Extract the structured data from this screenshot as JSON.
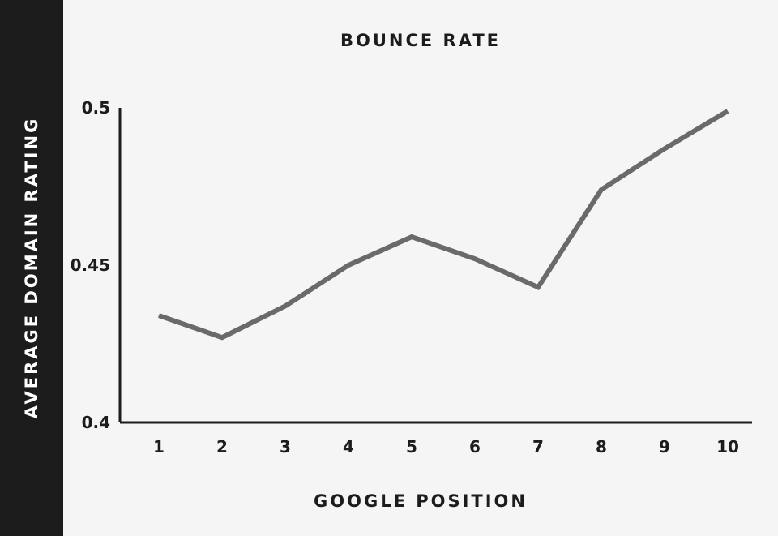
{
  "chart_data": {
    "type": "line",
    "title": "BOUNCE RATE",
    "xlabel": "GOOGLE POSITION",
    "ylabel": "AVERAGE DOMAIN RATING",
    "categories": [
      "1",
      "2",
      "3",
      "4",
      "5",
      "6",
      "7",
      "8",
      "9",
      "10"
    ],
    "series": [
      {
        "values": [
          0.434,
          0.427,
          0.437,
          0.45,
          0.459,
          0.452,
          0.443,
          0.474,
          0.487,
          0.499
        ]
      }
    ],
    "ylim": [
      0.4,
      0.5
    ],
    "yticks": [
      "0.4",
      "0.45",
      "0.5"
    ],
    "grid": false,
    "colors": {
      "line": "#6a6a6a",
      "axis": "#1c1c1c",
      "band": "#1c1c1c"
    }
  }
}
